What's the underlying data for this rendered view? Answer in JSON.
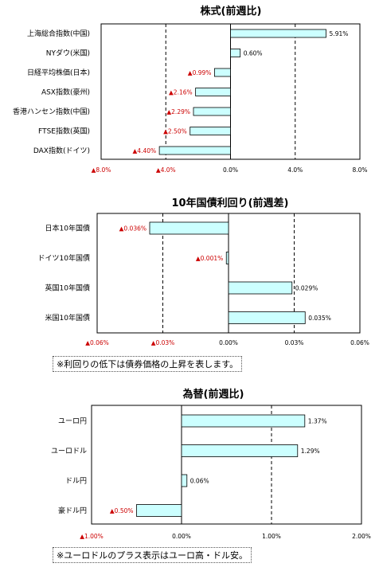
{
  "chart_data": [
    {
      "type": "bar",
      "orientation": "horizontal",
      "title": "株式(前週比)",
      "categories": [
        "上海総合指数(中国)",
        "NYダウ(米国)",
        "日経平均株価(日本)",
        "ASX指数(豪州)",
        "香港ハンセン指数(中国)",
        "FTSE指数(英国)",
        "DAX指数(ドイツ)"
      ],
      "values": [
        5.91,
        0.6,
        -0.99,
        -2.16,
        -2.29,
        -2.5,
        -4.4
      ],
      "value_labels": [
        "5.91%",
        "0.60%",
        "▲0.99%",
        "▲2.16%",
        "▲2.29%",
        "▲2.50%",
        "▲4.40%"
      ],
      "xlim": [
        -8,
        8
      ],
      "ticks": [
        -8,
        -4,
        0,
        4,
        8
      ],
      "tick_labels": [
        "▲8.0%",
        "▲4.0%",
        "0.0%",
        "4.0%",
        "8.0%"
      ],
      "dashed_gridlines": [
        -4,
        4
      ],
      "bar_color": "#ccffff"
    },
    {
      "type": "bar",
      "orientation": "horizontal",
      "title": "10年国債利回り(前週差)",
      "categories": [
        "日本10年国債",
        "ドイツ10年国債",
        "英国10年国債",
        "米国10年国債"
      ],
      "values": [
        -0.036,
        -0.001,
        0.029,
        0.035
      ],
      "value_labels": [
        "▲0.036%",
        "▲0.001%",
        "0.029%",
        "0.035%"
      ],
      "xlim": [
        -0.06,
        0.06
      ],
      "ticks": [
        -0.06,
        -0.03,
        0,
        0.03,
        0.06
      ],
      "tick_labels": [
        "▲0.06%",
        "▲0.03%",
        "0.00%",
        "0.03%",
        "0.06%"
      ],
      "dashed_gridlines": [
        -0.03,
        0.03
      ],
      "bar_color": "#ccffff"
    },
    {
      "type": "bar",
      "orientation": "horizontal",
      "title": "為替(前週比)",
      "categories": [
        "ユーロ円",
        "ユーロドル",
        "ドル円",
        "豪ドル円"
      ],
      "values": [
        1.37,
        1.29,
        0.06,
        -0.5
      ],
      "value_labels": [
        "1.37%",
        "1.29%",
        "0.06%",
        "▲0.50%"
      ],
      "xlim": [
        -1,
        2
      ],
      "ticks": [
        -1,
        0,
        1,
        2
      ],
      "tick_labels": [
        "▲1.00%",
        "0.00%",
        "1.00%",
        "2.00%"
      ],
      "dashed_gridlines": [
        1
      ],
      "bar_color": "#ccffff"
    }
  ],
  "notes": {
    "bond": "※利回りの低下は債券価格の上昇を表します。",
    "fx": "※ユーロドルのプラス表示はユーロ高・ドル安。"
  }
}
